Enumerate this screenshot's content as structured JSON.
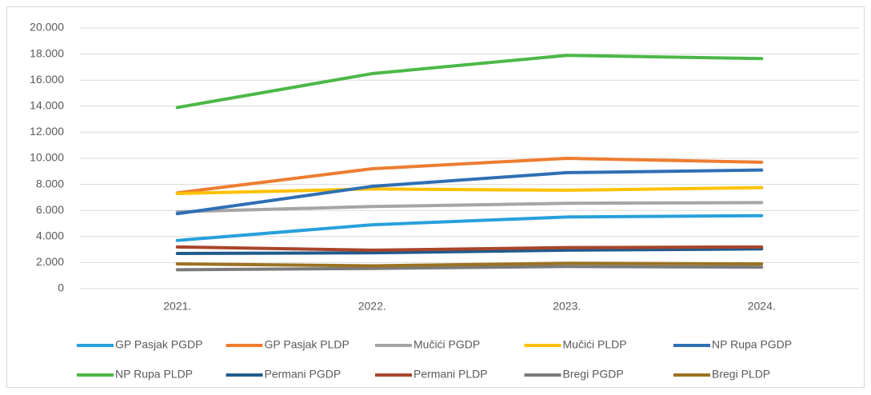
{
  "chart_data": {
    "type": "line",
    "categories": [
      "2021.",
      "2022.",
      "2023.",
      "2024."
    ],
    "series": [
      {
        "name": "GP Pasjak PGDP",
        "color": "#27a0dc",
        "values": [
          3700,
          4900,
          5500,
          5600
        ]
      },
      {
        "name": "GP Pasjak PLDP",
        "color": "#ed7d31",
        "values": [
          7350,
          9200,
          10000,
          9700
        ]
      },
      {
        "name": "Mučići PGDP",
        "color": "#a5a5a5",
        "values": [
          5900,
          6300,
          6550,
          6600
        ]
      },
      {
        "name": "Mučići PLDP",
        "color": "#ffc000",
        "values": [
          7300,
          7650,
          7550,
          7750
        ]
      },
      {
        "name": "NP Rupa PGDP",
        "color": "#2e6fb5",
        "values": [
          5750,
          7850,
          8900,
          9100
        ]
      },
      {
        "name": "NP Rupa PLDP",
        "color": "#4cb848",
        "values": [
          13900,
          16500,
          17900,
          17650
        ]
      },
      {
        "name": "Permani PGDP",
        "color": "#1f5b8c",
        "values": [
          2700,
          2750,
          2950,
          3050
        ]
      },
      {
        "name": "Permani PLDP",
        "color": "#a9452a",
        "values": [
          3200,
          2950,
          3150,
          3200
        ]
      },
      {
        "name": "Bregi PGDP",
        "color": "#7a7a7a",
        "values": [
          1450,
          1550,
          1700,
          1650
        ]
      },
      {
        "name": "Bregi PLDP",
        "color": "#9a7221",
        "values": [
          1900,
          1750,
          1950,
          1900
        ]
      }
    ],
    "ylim": [
      0,
      20000
    ],
    "yticks": [
      0,
      {
        "value": 2000,
        "label": "2.000"
      },
      {
        "value": 4000,
        "label": "4.000"
      },
      {
        "value": 6000,
        "label": "6.000"
      },
      {
        "value": 8000,
        "label": "8.000"
      },
      {
        "value": 10000,
        "label": "10.000"
      },
      {
        "value": 12000,
        "label": "12.000"
      },
      {
        "value": 14000,
        "label": "14.000"
      },
      {
        "value": 16000,
        "label": "16.000"
      },
      {
        "value": 18000,
        "label": "18.000"
      },
      {
        "value": 20000,
        "label": "20.000"
      }
    ],
    "grid": true,
    "legend": "bottom"
  }
}
